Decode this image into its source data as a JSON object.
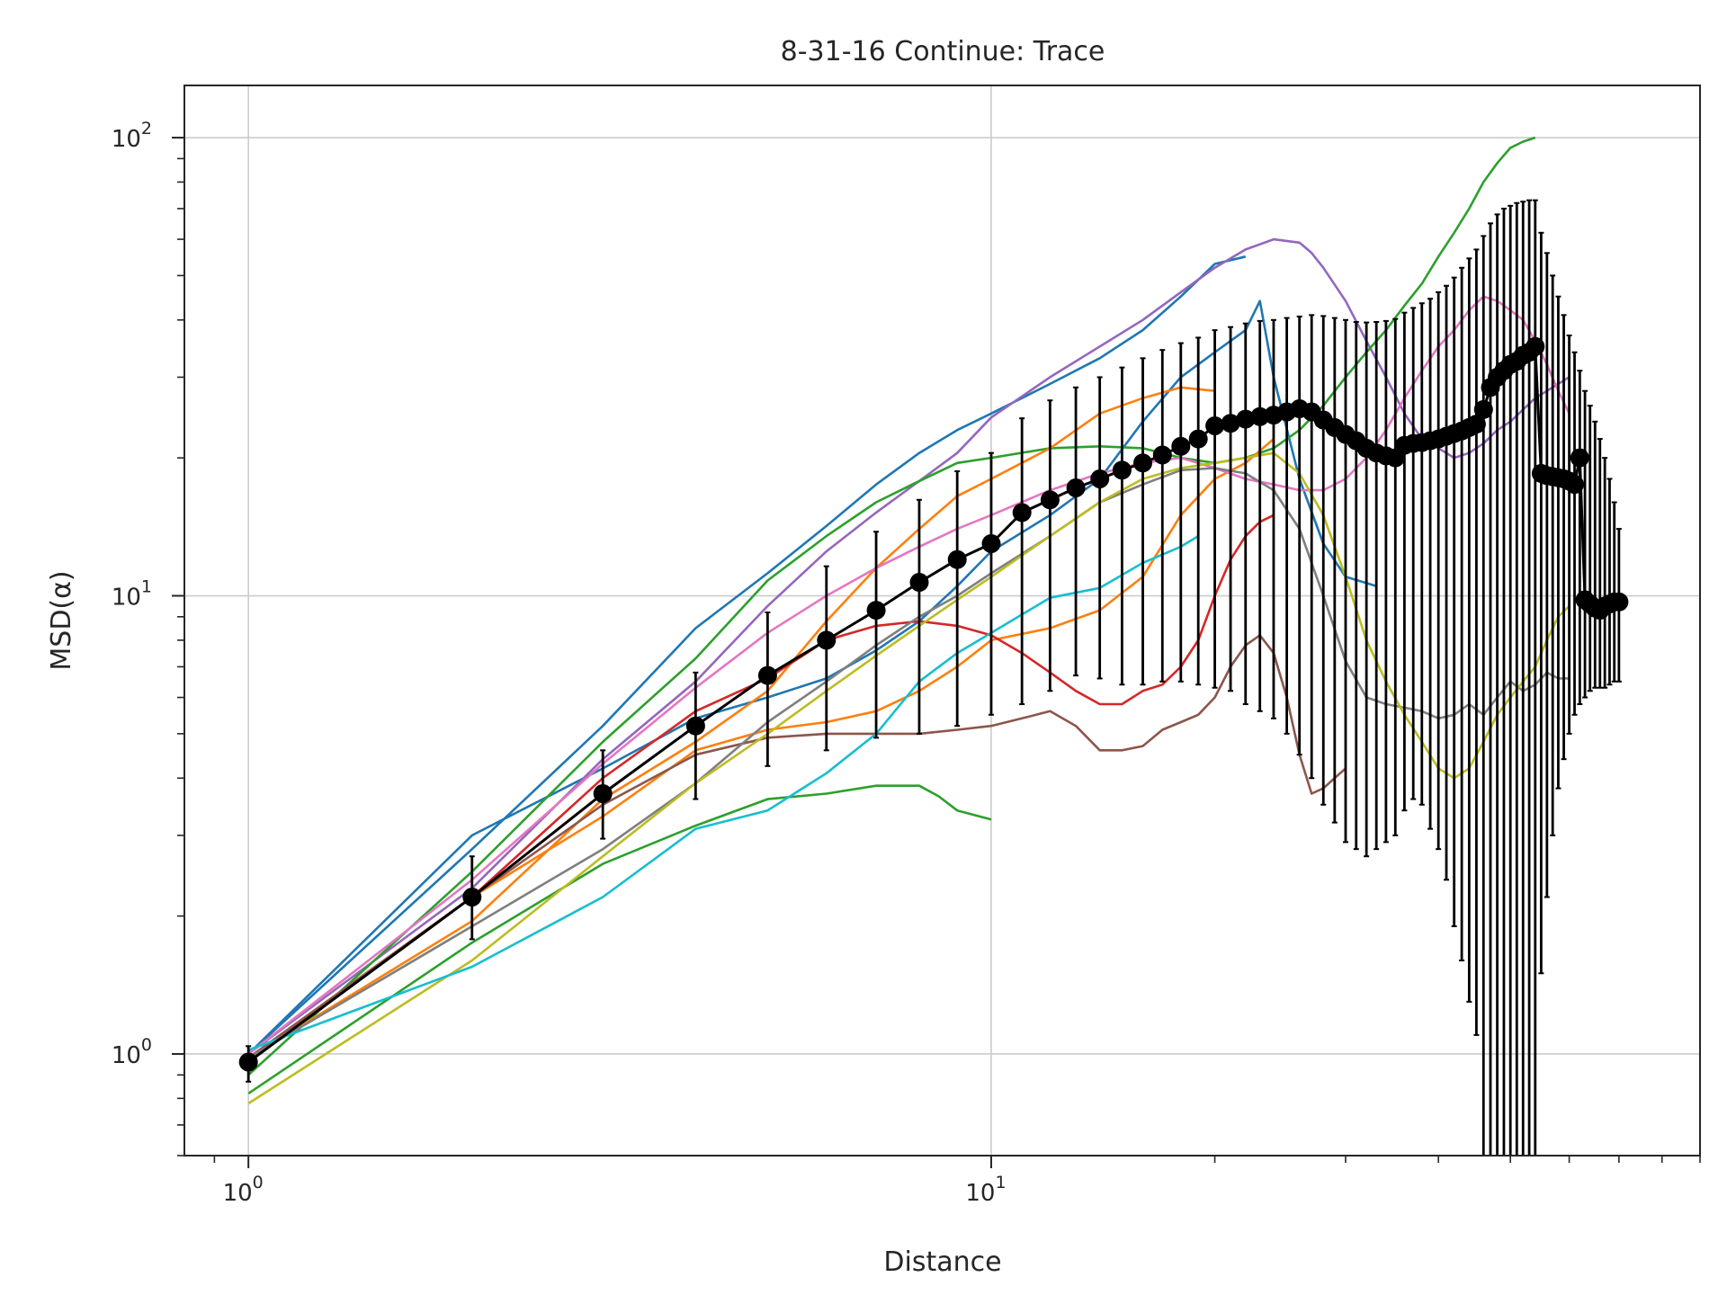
{
  "chart_data": {
    "type": "line",
    "title": "8-31-16 Continue: Trace",
    "xlabel": "Distance",
    "ylabel": "MSD(α)",
    "xscale": "log",
    "yscale": "log",
    "xlim": [
      0.82,
      90
    ],
    "ylim": [
      0.6,
      130
    ],
    "grid": true,
    "x_ticks": [
      {
        "base": "10",
        "exp": "0",
        "value": 1
      },
      {
        "base": "10",
        "exp": "1",
        "value": 10
      }
    ],
    "y_ticks": [
      {
        "base": "10",
        "exp": "0",
        "value": 1
      },
      {
        "base": "10",
        "exp": "1",
        "value": 10
      },
      {
        "base": "10",
        "exp": "2",
        "value": 100
      }
    ],
    "series": [
      {
        "color": "#1f77b4",
        "x": [
          1,
          2,
          3,
          4,
          5,
          6,
          7,
          8,
          9,
          10,
          12,
          14,
          16,
          18,
          20,
          22,
          23,
          24,
          26,
          28,
          30,
          33
        ],
        "y": [
          1.0,
          3.0,
          4.2,
          5.4,
          6.0,
          6.6,
          7.6,
          8.8,
          10.5,
          12.5,
          15.0,
          18.0,
          24.0,
          30.0,
          34.0,
          38.0,
          44.0,
          30.0,
          18.0,
          13.0,
          11.0,
          10.5
        ]
      },
      {
        "color": "#1f77b4",
        "x": [
          1,
          2,
          3,
          4,
          5,
          6,
          7,
          8,
          9,
          10,
          12,
          14,
          16,
          18,
          20,
          22
        ],
        "y": [
          1.0,
          2.8,
          5.2,
          8.5,
          11.2,
          14.2,
          17.5,
          20.5,
          23.0,
          25.0,
          29.0,
          33.0,
          38.0,
          45.0,
          53.0,
          55.0
        ]
      },
      {
        "color": "#9467bd",
        "x": [
          1,
          2,
          3,
          4,
          5,
          6,
          7,
          8,
          9,
          10,
          12,
          14,
          16,
          18,
          20,
          22,
          24,
          26,
          27,
          28,
          30,
          32,
          34,
          36,
          38,
          40,
          42,
          44,
          46,
          48,
          50,
          52,
          54,
          56,
          58,
          60
        ],
        "y": [
          1.0,
          2.3,
          4.4,
          6.5,
          9.5,
          12.5,
          15.2,
          17.8,
          20.5,
          24.5,
          30.0,
          35.0,
          40.0,
          46.0,
          52.0,
          57.0,
          60.0,
          59.0,
          56.0,
          52.0,
          44.0,
          36.0,
          30.0,
          25.0,
          22.0,
          21.0,
          20.0,
          20.5,
          21.5,
          23.0,
          24.0,
          25.5,
          27.0,
          28.0,
          29.0,
          30.0
        ]
      },
      {
        "color": "#2ca02c",
        "x": [
          1,
          2,
          3,
          4,
          5,
          6,
          7,
          8,
          9,
          10,
          12,
          14,
          16,
          18,
          20,
          22,
          24,
          26,
          28,
          30,
          32,
          34,
          36,
          38,
          40,
          42,
          44,
          46,
          48,
          50,
          52,
          54
        ],
        "y": [
          0.9,
          2.5,
          4.8,
          7.3,
          10.8,
          13.5,
          16.0,
          17.8,
          19.5,
          20.0,
          21.0,
          21.2,
          21.0,
          20.0,
          19.5,
          20.0,
          21.0,
          23.0,
          26.0,
          30.0,
          34.0,
          38.0,
          43.0,
          48.0,
          55.0,
          62.0,
          70.0,
          80.0,
          88.0,
          95.0,
          98.0,
          100.0
        ]
      },
      {
        "color": "#2ca02c",
        "x": [
          1,
          2,
          3,
          4,
          5,
          6,
          7,
          8,
          8.5,
          9,
          10
        ],
        "y": [
          0.82,
          1.75,
          2.6,
          3.15,
          3.6,
          3.7,
          3.85,
          3.85,
          3.65,
          3.4,
          3.25
        ]
      },
      {
        "color": "#ff7f0e",
        "x": [
          1,
          2,
          3,
          4,
          5,
          6,
          7,
          8,
          9,
          10,
          12,
          14,
          16,
          18,
          20
        ],
        "y": [
          0.98,
          1.95,
          3.6,
          4.8,
          6.2,
          8.8,
          11.5,
          14.0,
          16.5,
          18.0,
          21.0,
          25.0,
          27.0,
          28.5,
          28.0
        ]
      },
      {
        "color": "#ff7f0e",
        "x": [
          1,
          2,
          3,
          4,
          5,
          6,
          7,
          8,
          9,
          10,
          12,
          14,
          16,
          18,
          20,
          22,
          24
        ],
        "y": [
          0.98,
          2.2,
          3.3,
          4.6,
          5.1,
          5.3,
          5.6,
          6.2,
          7.0,
          8.0,
          8.5,
          9.3,
          11.0,
          15.0,
          18.0,
          19.5,
          22.0
        ]
      },
      {
        "color": "#d62728",
        "x": [
          1,
          2,
          3,
          4,
          5,
          6,
          7,
          8,
          9,
          10,
          11,
          12,
          13,
          14,
          15,
          16,
          17,
          18,
          19,
          20,
          21,
          22,
          23,
          24
        ],
        "y": [
          0.98,
          2.2,
          4.0,
          5.6,
          6.6,
          8.0,
          8.6,
          8.8,
          8.6,
          8.2,
          7.5,
          6.8,
          6.2,
          5.8,
          5.8,
          6.2,
          6.4,
          7.0,
          8.0,
          10.0,
          12.0,
          13.5,
          14.5,
          15.0
        ]
      },
      {
        "color": "#8c564b",
        "x": [
          1,
          2,
          3,
          4,
          5,
          6,
          7,
          8,
          9,
          10,
          11,
          12,
          13,
          14,
          15,
          16,
          17,
          18,
          19,
          20,
          21,
          22,
          23,
          24,
          25,
          26,
          27,
          28,
          29,
          30
        ],
        "y": [
          0.98,
          2.2,
          3.5,
          4.5,
          4.9,
          5.0,
          5.0,
          5.0,
          5.1,
          5.2,
          5.4,
          5.6,
          5.2,
          4.6,
          4.6,
          4.7,
          5.1,
          5.3,
          5.5,
          6.0,
          7.0,
          7.8,
          8.2,
          7.5,
          6.0,
          4.5,
          3.7,
          3.8,
          4.0,
          4.2
        ]
      },
      {
        "color": "#e377c2",
        "x": [
          1,
          2,
          3,
          4,
          5,
          6,
          7,
          8,
          9,
          10,
          12,
          14,
          16,
          18,
          20,
          22,
          24,
          26,
          28,
          30,
          32,
          34,
          36,
          38,
          40,
          42,
          44,
          46,
          48,
          50,
          52,
          54,
          56,
          58,
          60
        ],
        "y": [
          1.0,
          2.4,
          4.3,
          6.3,
          8.3,
          10.0,
          11.5,
          12.8,
          14.0,
          15.0,
          17.0,
          18.5,
          19.5,
          20.0,
          19.0,
          18.0,
          17.5,
          17.0,
          17.0,
          18.0,
          20.0,
          23.0,
          27.0,
          31.0,
          35.0,
          38.0,
          42.0,
          45.0,
          44.0,
          42.0,
          40.0,
          36.0,
          32.0,
          28.0,
          25.0
        ]
      },
      {
        "color": "#7f7f7f",
        "x": [
          1,
          2,
          3,
          4,
          5,
          6,
          7,
          8,
          9,
          10,
          12,
          14,
          16,
          18,
          20,
          22,
          24,
          26,
          28,
          30,
          32,
          34,
          36,
          38,
          40,
          42,
          44,
          46,
          48,
          50,
          52,
          54,
          56,
          58,
          60
        ],
        "y": [
          0.98,
          1.9,
          2.8,
          3.9,
          5.3,
          6.5,
          7.8,
          9.0,
          10.0,
          11.2,
          13.5,
          16.0,
          17.5,
          18.8,
          19.0,
          18.5,
          17.0,
          14.0,
          10.0,
          7.2,
          6.0,
          5.8,
          5.7,
          5.6,
          5.4,
          5.5,
          5.8,
          5.5,
          6.0,
          6.5,
          6.2,
          6.4,
          6.8,
          6.6,
          6.6
        ]
      },
      {
        "color": "#bcbd22",
        "x": [
          1,
          2,
          3,
          4,
          5,
          6,
          7,
          8,
          9,
          10,
          12,
          14,
          16,
          18,
          20,
          22,
          24,
          26,
          28,
          30,
          32,
          34,
          36,
          38,
          40,
          42,
          44,
          46,
          48,
          50,
          52,
          54,
          56,
          58,
          60
        ],
        "y": [
          0.78,
          1.6,
          2.7,
          3.9,
          5.0,
          6.2,
          7.4,
          8.6,
          9.8,
          11.0,
          13.5,
          16.0,
          18.0,
          19.0,
          19.5,
          20.0,
          20.5,
          18.5,
          15.0,
          11.0,
          8.0,
          6.5,
          5.5,
          4.8,
          4.2,
          4.0,
          4.2,
          4.8,
          5.5,
          6.0,
          6.5,
          7.0,
          8.0,
          9.0,
          9.5
        ]
      },
      {
        "color": "#17becf",
        "x": [
          1,
          2,
          3,
          4,
          5,
          6,
          7,
          8,
          9,
          10,
          12,
          14,
          16,
          18,
          19
        ],
        "y": [
          1.02,
          1.55,
          2.2,
          3.1,
          3.4,
          4.1,
          5.0,
          6.5,
          7.5,
          8.3,
          9.9,
          10.4,
          11.8,
          12.8,
          13.5
        ]
      }
    ],
    "mean": {
      "color": "#000000",
      "x": [
        1,
        2,
        3,
        4,
        5,
        6,
        7,
        8,
        9,
        10,
        11,
        12,
        13,
        14,
        15,
        16,
        17,
        18,
        19,
        20,
        21,
        22,
        23,
        24,
        25,
        26,
        27,
        28,
        29,
        30,
        31,
        32,
        33,
        34,
        35,
        36,
        37,
        38,
        39,
        40,
        41,
        42,
        43,
        44,
        45,
        46,
        47,
        48,
        49,
        50,
        51,
        52,
        53,
        54,
        55,
        56,
        57,
        58,
        59,
        60,
        61,
        62,
        63,
        64,
        65,
        66,
        67,
        68,
        69,
        70
      ],
      "y": [
        0.96,
        2.2,
        3.7,
        5.2,
        6.7,
        8.0,
        9.3,
        10.7,
        12.0,
        13.0,
        15.2,
        16.2,
        17.2,
        18.0,
        18.8,
        19.5,
        20.3,
        21.2,
        22.0,
        23.5,
        23.8,
        24.3,
        24.6,
        24.8,
        25.2,
        25.6,
        25.2,
        24.2,
        23.3,
        22.5,
        21.8,
        21.0,
        20.5,
        20.2,
        20.0,
        21.3,
        21.5,
        21.6,
        21.8,
        22.0,
        22.3,
        22.6,
        22.9,
        23.3,
        23.7,
        25.5,
        28.5,
        30.0,
        31.0,
        32.0,
        32.5,
        33.5,
        34.0,
        35.0,
        18.5,
        18.3,
        18.2,
        18.1,
        18.0,
        17.8,
        17.5,
        20.0,
        9.8,
        9.6,
        9.4,
        9.3,
        9.5,
        9.6,
        9.7,
        9.7
      ],
      "err_lo": [
        0.87,
        1.78,
        2.95,
        3.6,
        4.25,
        4.6,
        4.9,
        5.0,
        5.2,
        5.5,
        5.8,
        6.2,
        6.7,
        6.6,
        6.4,
        6.4,
        6.5,
        6.5,
        6.4,
        6.3,
        6.2,
        5.8,
        5.6,
        5.4,
        5.0,
        4.5,
        4.0,
        3.5,
        3.2,
        2.9,
        2.8,
        2.7,
        2.8,
        2.9,
        3.0,
        3.4,
        3.6,
        3.5,
        3.1,
        2.8,
        2.4,
        1.9,
        1.6,
        1.3,
        1.1,
        0.6,
        0.6,
        0.6,
        0.6,
        0.6,
        0.6,
        0.6,
        0.6,
        0.6,
        1.5,
        2.2,
        3.0,
        3.8,
        4.4,
        5.0,
        5.5,
        5.8,
        6.0,
        6.2,
        6.3,
        6.3,
        6.3,
        6.4,
        6.5,
        6.5
      ],
      "err_hi": [
        1.04,
        2.7,
        4.6,
        6.8,
        9.2,
        11.6,
        13.8,
        16.2,
        18.7,
        20.5,
        24.4,
        26.7,
        28.5,
        30.0,
        31.5,
        33.0,
        34.4,
        35.6,
        36.6,
        38.0,
        38.6,
        39.3,
        39.8,
        40.0,
        40.4,
        40.7,
        41.0,
        40.8,
        40.4,
        40.0,
        39.6,
        39.5,
        39.6,
        39.8,
        40.2,
        41.5,
        42.5,
        43.5,
        44.5,
        46.0,
        47.5,
        49.5,
        52.0,
        54.5,
        57.0,
        61.0,
        65.0,
        68.0,
        70.0,
        71.0,
        72.0,
        72.5,
        73.0,
        73.0,
        62.0,
        56.0,
        50.0,
        45.0,
        41.0,
        37.0,
        34.0,
        31.0,
        28.0,
        26.0,
        24.0,
        22.0,
        20.0,
        18.0,
        16.0,
        14.0
      ]
    }
  }
}
